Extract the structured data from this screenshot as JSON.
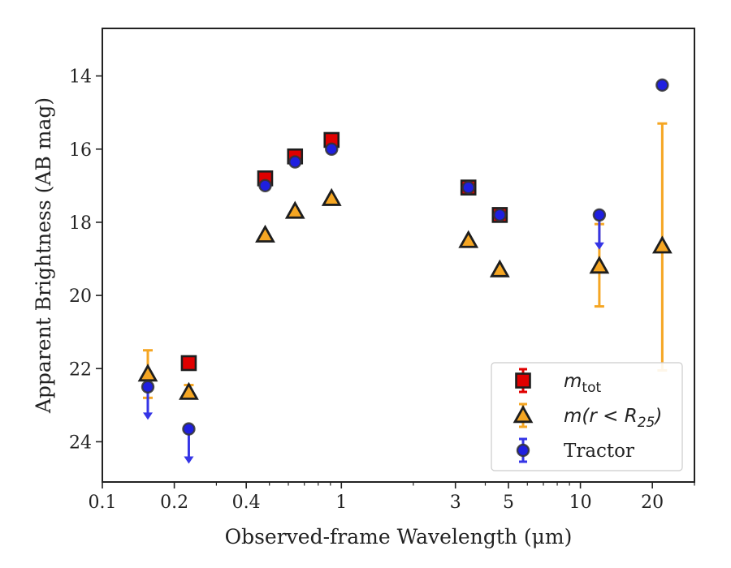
{
  "chart_data": {
    "type": "scatter",
    "xlabel": "Observed-frame Wavelength (μm)",
    "ylabel": "Apparent Brightness (AB mag)",
    "xscale": "log",
    "xlim": [
      0.1,
      30
    ],
    "ylim": [
      25.1,
      12.7
    ],
    "y_inverted": true,
    "x_ticks": [
      {
        "value": 0.1,
        "label": "0.1"
      },
      {
        "value": 0.2,
        "label": "0.2"
      },
      {
        "value": 0.4,
        "label": "0.4"
      },
      {
        "value": 1,
        "label": "1"
      },
      {
        "value": 3,
        "label": "3"
      },
      {
        "value": 5,
        "label": "5"
      },
      {
        "value": 10,
        "label": "10"
      },
      {
        "value": 20,
        "label": "20"
      }
    ],
    "y_ticks": [
      {
        "value": 14,
        "label": "14"
      },
      {
        "value": 16,
        "label": "16"
      },
      {
        "value": 18,
        "label": "18"
      },
      {
        "value": 20,
        "label": "20"
      },
      {
        "value": 22,
        "label": "22"
      },
      {
        "value": 24,
        "label": "24"
      }
    ],
    "grid": false,
    "legend_position": "bottom-right",
    "series": [
      {
        "key": "mtot",
        "legend_main": "m",
        "legend_sub": "tot",
        "marker": "square",
        "face_color": "#e00000",
        "error_color": "#e00000",
        "points": [
          {
            "x": 0.23,
            "y": 21.85
          },
          {
            "x": 0.48,
            "y": 16.8
          },
          {
            "x": 0.64,
            "y": 16.2
          },
          {
            "x": 0.91,
            "y": 15.75
          },
          {
            "x": 3.4,
            "y": 17.05
          },
          {
            "x": 4.6,
            "y": 17.8
          }
        ]
      },
      {
        "key": "mr25",
        "legend_main": "m(r < R",
        "legend_sub": "25",
        "legend_close": ")",
        "marker": "triangle",
        "face_color": "#f5a623",
        "error_color": "#f5a623",
        "points": [
          {
            "x": 0.155,
            "y": 22.15,
            "yerr": [
              21.5,
              22.8
            ]
          },
          {
            "x": 0.23,
            "y": 22.65,
            "yerr": [
              22.45,
              22.8
            ]
          },
          {
            "x": 0.48,
            "y": 18.35
          },
          {
            "x": 0.64,
            "y": 17.7
          },
          {
            "x": 0.91,
            "y": 17.35
          },
          {
            "x": 3.4,
            "y": 18.5
          },
          {
            "x": 4.6,
            "y": 19.3
          },
          {
            "x": 12.0,
            "y": 19.2,
            "yerr": [
              18.05,
              20.3
            ]
          },
          {
            "x": 22.0,
            "y": 18.65,
            "yerr": [
              15.3,
              22.05
            ]
          }
        ]
      },
      {
        "key": "tractor",
        "legend_main": "Tractor",
        "marker": "circle",
        "face_color": "#1f1fe0",
        "error_color": "#3535e6",
        "points": [
          {
            "x": 0.155,
            "y": 22.5,
            "upper_limit": true,
            "arrow_to": 23.4
          },
          {
            "x": 0.23,
            "y": 23.65,
            "upper_limit": true,
            "arrow_to": 24.6
          },
          {
            "x": 0.48,
            "y": 17.0
          },
          {
            "x": 0.64,
            "y": 16.35
          },
          {
            "x": 0.91,
            "y": 16.0
          },
          {
            "x": 3.4,
            "y": 17.05
          },
          {
            "x": 4.6,
            "y": 17.8
          },
          {
            "x": 12.0,
            "y": 17.8,
            "upper_limit": true,
            "arrow_to": 18.75
          },
          {
            "x": 22.0,
            "y": 14.25
          }
        ]
      }
    ]
  }
}
